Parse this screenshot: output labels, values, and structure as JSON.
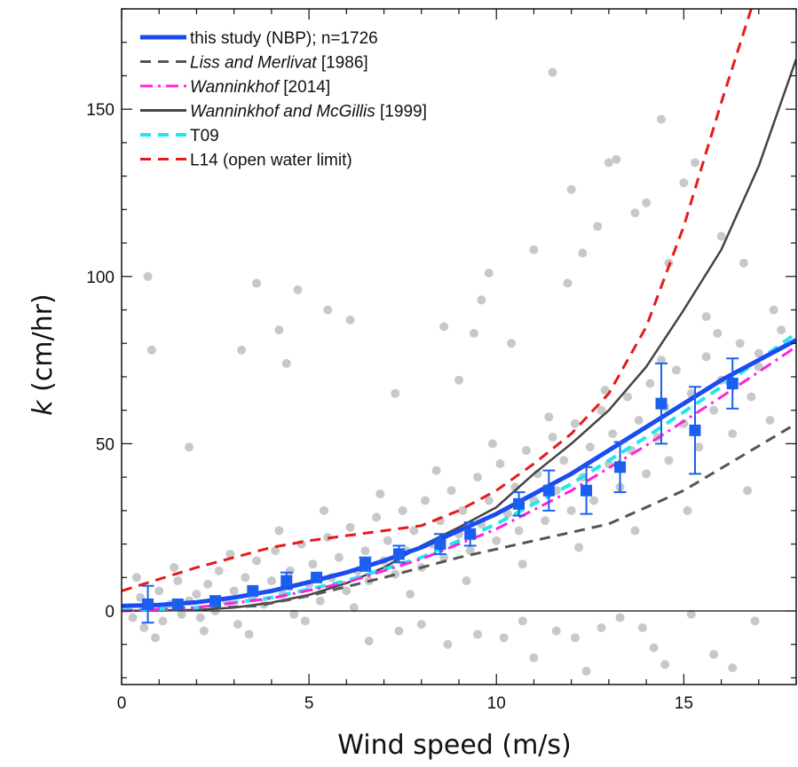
{
  "chart_data": {
    "type": "scatter",
    "title": "",
    "xlabel": "Wind speed (m/s)",
    "ylabel": {
      "symbol": "k",
      "unit": " (cm/hr)"
    },
    "xlim": [
      0,
      18
    ],
    "ylim": [
      -22,
      180
    ],
    "xticks": [
      0,
      5,
      10,
      15
    ],
    "yticks": [
      0,
      50,
      100,
      150
    ],
    "zero_line": true,
    "grid": false,
    "legend_position": "top-left",
    "legend": [
      {
        "label": "this study (NBP); n=1726",
        "series": "this_study"
      },
      {
        "label": "Liss and Merlivat",
        "suffix": " [1986]",
        "italic": true,
        "series": "lm86"
      },
      {
        "label": "Wanninkhof",
        "suffix": " [2014]",
        "italic": true,
        "series": "w14"
      },
      {
        "label": "Wanninkhof and McGillis",
        "suffix": " [1999]",
        "italic": true,
        "series": "wm99"
      },
      {
        "label": "T09",
        "series": "t09"
      },
      {
        "label": "L14 (open water limit)",
        "series": "l14"
      }
    ],
    "colors": {
      "scatter": "#c8c8c8",
      "this_study": "#1a4cf0",
      "lm86": "#555555",
      "w14": "#ff22dd",
      "wm99": "#444444",
      "t09": "#22e6ee",
      "l14": "#e61a1a",
      "bins": "#1a5ff0",
      "axis": "#111111"
    },
    "lines": [
      {
        "id": "l14",
        "style": "dashed",
        "width": 3,
        "x": [
          0,
          1,
          2,
          3,
          4,
          5,
          6,
          7,
          8,
          9,
          10,
          11,
          12,
          13,
          14,
          15,
          16,
          16.8
        ],
        "y": [
          6,
          9.5,
          13,
          16,
          19,
          21,
          22.5,
          24,
          25.5,
          30,
          36,
          44,
          53,
          65,
          85,
          115,
          152,
          180
        ]
      },
      {
        "id": "wm99",
        "style": "solid",
        "width": 2.5,
        "x": [
          0,
          2,
          3,
          4,
          5,
          6,
          7,
          8,
          9,
          10,
          11,
          12,
          13,
          14,
          15,
          16,
          17,
          18
        ],
        "y": [
          0,
          0.3,
          1,
          2.5,
          4.8,
          8.3,
          13,
          19.5,
          25,
          31,
          41,
          50,
          60,
          73,
          90,
          108,
          133,
          165
        ]
      },
      {
        "id": "lm86",
        "style": "dashed",
        "width": 3,
        "x": [
          0,
          3.6,
          5,
          7,
          9,
          11,
          13,
          15,
          18
        ],
        "y": [
          0,
          1.5,
          4.5,
          10,
          16,
          21,
          26,
          36,
          56
        ]
      },
      {
        "id": "t09",
        "style": "dashed",
        "width": 4,
        "x": [
          0,
          2,
          4,
          6,
          8,
          10,
          12,
          14,
          16,
          18
        ],
        "y": [
          0.2,
          1,
          4,
          9,
          16,
          26,
          38,
          52,
          67,
          83
        ]
      },
      {
        "id": "w14",
        "style": "dashdot",
        "width": 3,
        "x": [
          0,
          2,
          4,
          6,
          8,
          10,
          12,
          14,
          16,
          18
        ],
        "y": [
          0,
          1,
          3.8,
          8.5,
          15.5,
          24.5,
          36,
          49.5,
          64,
          79
        ]
      },
      {
        "id": "this_study",
        "style": "solid",
        "width": 5,
        "x": [
          0,
          1,
          2,
          3,
          4,
          5,
          6,
          7,
          8,
          9,
          10,
          11,
          12,
          13,
          14,
          15,
          16,
          17,
          18
        ],
        "y": [
          1.5,
          1.8,
          2.6,
          4,
          6,
          8.6,
          11.5,
          15,
          19,
          24,
          29,
          35,
          41,
          48,
          55,
          62,
          69,
          75,
          81
        ]
      }
    ],
    "bins": [
      {
        "x": 0.7,
        "y": 2,
        "err": 5.5
      },
      {
        "x": 1.5,
        "y": 2,
        "err": 0
      },
      {
        "x": 2.5,
        "y": 3,
        "err": 0
      },
      {
        "x": 3.5,
        "y": 6,
        "err": 0
      },
      {
        "x": 4.4,
        "y": 9,
        "err": 2.5
      },
      {
        "x": 5.2,
        "y": 10,
        "err": 0
      },
      {
        "x": 6.5,
        "y": 14,
        "err": 2
      },
      {
        "x": 7.4,
        "y": 17,
        "err": 2.5
      },
      {
        "x": 8.5,
        "y": 20,
        "err": 3
      },
      {
        "x": 9.3,
        "y": 23,
        "err": 3.5
      },
      {
        "x": 10.6,
        "y": 32,
        "err": 3.5
      },
      {
        "x": 11.4,
        "y": 36,
        "err": 6
      },
      {
        "x": 12.4,
        "y": 36,
        "err": 7
      },
      {
        "x": 13.3,
        "y": 43,
        "err": 7.5
      },
      {
        "x": 14.4,
        "y": 62,
        "err": 12
      },
      {
        "x": 15.3,
        "y": 54,
        "err": 13
      },
      {
        "x": 16.3,
        "y": 68,
        "err": 7.5
      }
    ],
    "scatter": [
      [
        0.3,
        -2
      ],
      [
        0.5,
        4
      ],
      [
        0.6,
        -5
      ],
      [
        0.8,
        1
      ],
      [
        1.0,
        6
      ],
      [
        1.1,
        -3
      ],
      [
        1.3,
        2
      ],
      [
        1.5,
        9
      ],
      [
        1.6,
        -1
      ],
      [
        1.8,
        3
      ],
      [
        2.0,
        5
      ],
      [
        2.1,
        -2
      ],
      [
        2.3,
        8
      ],
      [
        2.5,
        0
      ],
      [
        2.6,
        12
      ],
      [
        2.8,
        3
      ],
      [
        3.0,
        6
      ],
      [
        3.1,
        -4
      ],
      [
        3.3,
        10
      ],
      [
        3.5,
        4
      ],
      [
        3.6,
        15
      ],
      [
        3.8,
        2
      ],
      [
        4.0,
        9
      ],
      [
        4.1,
        18
      ],
      [
        4.3,
        5
      ],
      [
        4.5,
        12
      ],
      [
        4.6,
        -1
      ],
      [
        4.8,
        20
      ],
      [
        5.0,
        8
      ],
      [
        5.1,
        14
      ],
      [
        5.3,
        3
      ],
      [
        5.5,
        22
      ],
      [
        5.6,
        10
      ],
      [
        5.8,
        16
      ],
      [
        6.0,
        6
      ],
      [
        6.1,
        25
      ],
      [
        6.3,
        12
      ],
      [
        6.5,
        18
      ],
      [
        6.6,
        9
      ],
      [
        6.8,
        28
      ],
      [
        7.0,
        15
      ],
      [
        7.1,
        21
      ],
      [
        7.3,
        11
      ],
      [
        7.5,
        30
      ],
      [
        7.6,
        18
      ],
      [
        7.8,
        24
      ],
      [
        8.0,
        13
      ],
      [
        8.1,
        33
      ],
      [
        8.3,
        20
      ],
      [
        8.5,
        27
      ],
      [
        8.6,
        16
      ],
      [
        8.8,
        36
      ],
      [
        9.0,
        23
      ],
      [
        9.1,
        30
      ],
      [
        9.3,
        18
      ],
      [
        9.5,
        40
      ],
      [
        9.6,
        26
      ],
      [
        9.8,
        33
      ],
      [
        10.0,
        21
      ],
      [
        10.1,
        44
      ],
      [
        10.3,
        29
      ],
      [
        10.5,
        37
      ],
      [
        10.6,
        24
      ],
      [
        10.8,
        48
      ],
      [
        11.0,
        33
      ],
      [
        11.1,
        41
      ],
      [
        11.3,
        27
      ],
      [
        11.5,
        52
      ],
      [
        11.6,
        36
      ],
      [
        11.8,
        45
      ],
      [
        12.0,
        30
      ],
      [
        12.1,
        56
      ],
      [
        12.3,
        40
      ],
      [
        12.5,
        49
      ],
      [
        12.6,
        33
      ],
      [
        12.8,
        60
      ],
      [
        13.0,
        44
      ],
      [
        13.1,
        53
      ],
      [
        13.3,
        37
      ],
      [
        13.5,
        64
      ],
      [
        13.6,
        48
      ],
      [
        13.8,
        57
      ],
      [
        14.0,
        41
      ],
      [
        14.1,
        68
      ],
      [
        14.3,
        52
      ],
      [
        14.5,
        61
      ],
      [
        14.6,
        45
      ],
      [
        14.8,
        72
      ],
      [
        15.0,
        56
      ],
      [
        15.2,
        65
      ],
      [
        15.4,
        49
      ],
      [
        15.6,
        76
      ],
      [
        15.8,
        60
      ],
      [
        16.0,
        69
      ],
      [
        16.3,
        53
      ],
      [
        16.5,
        80
      ],
      [
        16.8,
        64
      ],
      [
        17.0,
        73
      ],
      [
        17.3,
        57
      ],
      [
        17.6,
        84
      ],
      [
        0.4,
        10
      ],
      [
        0.9,
        -8
      ],
      [
        1.4,
        13
      ],
      [
        2.2,
        -6
      ],
      [
        2.9,
        17
      ],
      [
        3.4,
        -7
      ],
      [
        4.2,
        24
      ],
      [
        4.9,
        -3
      ],
      [
        5.4,
        30
      ],
      [
        6.2,
        1
      ],
      [
        6.9,
        35
      ],
      [
        7.7,
        5
      ],
      [
        8.4,
        42
      ],
      [
        9.2,
        9
      ],
      [
        9.9,
        50
      ],
      [
        10.7,
        14
      ],
      [
        11.4,
        58
      ],
      [
        12.2,
        19
      ],
      [
        12.9,
        66
      ],
      [
        13.7,
        24
      ],
      [
        14.4,
        75
      ],
      [
        15.1,
        30
      ],
      [
        15.9,
        83
      ],
      [
        16.7,
        36
      ],
      [
        17.4,
        90
      ],
      [
        0.7,
        100
      ],
      [
        0.8,
        78
      ],
      [
        1.8,
        49
      ],
      [
        3.2,
        78
      ],
      [
        3.6,
        98
      ],
      [
        4.2,
        84
      ],
      [
        4.4,
        74
      ],
      [
        4.7,
        96
      ],
      [
        5.5,
        90
      ],
      [
        6.1,
        87
      ],
      [
        7.3,
        65
      ],
      [
        8.6,
        85
      ],
      [
        9.0,
        69
      ],
      [
        9.4,
        83
      ],
      [
        9.6,
        93
      ],
      [
        9.8,
        101
      ],
      [
        10.4,
        80
      ],
      [
        11.0,
        108
      ],
      [
        11.5,
        161
      ],
      [
        11.9,
        98
      ],
      [
        12.0,
        126
      ],
      [
        12.3,
        107
      ],
      [
        12.7,
        115
      ],
      [
        13.0,
        134
      ],
      [
        13.2,
        135
      ],
      [
        13.7,
        119
      ],
      [
        14.0,
        122
      ],
      [
        14.4,
        147
      ],
      [
        14.6,
        104
      ],
      [
        15.0,
        128
      ],
      [
        15.3,
        134
      ],
      [
        15.6,
        88
      ],
      [
        16.0,
        112
      ],
      [
        16.6,
        104
      ],
      [
        17.0,
        77
      ],
      [
        10.2,
        -8
      ],
      [
        10.7,
        -3
      ],
      [
        11.0,
        -14
      ],
      [
        11.6,
        -6
      ],
      [
        12.1,
        -8
      ],
      [
        12.4,
        -18
      ],
      [
        12.8,
        -5
      ],
      [
        13.3,
        -2
      ],
      [
        13.9,
        -5
      ],
      [
        14.2,
        -11
      ],
      [
        14.5,
        -16
      ],
      [
        15.2,
        -1
      ],
      [
        15.8,
        -13
      ],
      [
        16.3,
        -17
      ],
      [
        16.9,
        -3
      ],
      [
        8.0,
        -4
      ],
      [
        8.7,
        -10
      ],
      [
        9.5,
        -7
      ],
      [
        7.4,
        -6
      ],
      [
        6.6,
        -9
      ]
    ]
  }
}
